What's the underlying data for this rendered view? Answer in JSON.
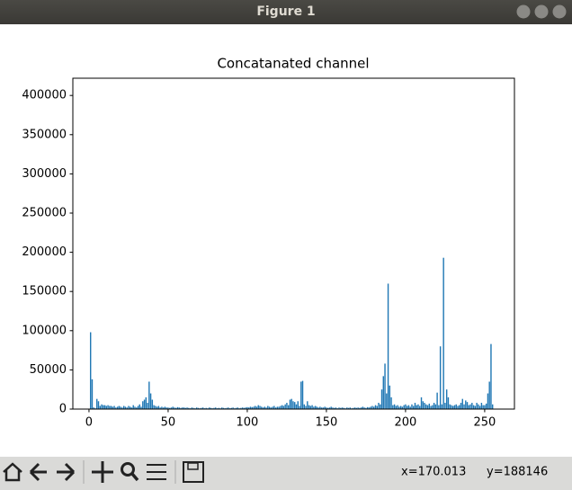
{
  "window": {
    "title": "Figure 1"
  },
  "chart_data": {
    "type": "bar",
    "title": "Concatanated channel",
    "color": "#1f77b4",
    "x": [
      0,
      1,
      2,
      3,
      4,
      5,
      6,
      7,
      8,
      9,
      10,
      11,
      12,
      13,
      14,
      15,
      16,
      17,
      18,
      19,
      20,
      21,
      22,
      23,
      24,
      25,
      26,
      27,
      28,
      29,
      30,
      31,
      32,
      33,
      34,
      35,
      36,
      37,
      38,
      39,
      40,
      41,
      42,
      43,
      44,
      45,
      46,
      47,
      48,
      49,
      50,
      51,
      52,
      53,
      54,
      55,
      56,
      57,
      58,
      59,
      60,
      61,
      62,
      63,
      64,
      65,
      66,
      67,
      68,
      69,
      70,
      71,
      72,
      73,
      74,
      75,
      76,
      77,
      78,
      79,
      80,
      81,
      82,
      83,
      84,
      85,
      86,
      87,
      88,
      89,
      90,
      91,
      92,
      93,
      94,
      95,
      96,
      97,
      98,
      99,
      100,
      101,
      102,
      103,
      104,
      105,
      106,
      107,
      108,
      109,
      110,
      111,
      112,
      113,
      114,
      115,
      116,
      117,
      118,
      119,
      120,
      121,
      122,
      123,
      124,
      125,
      126,
      127,
      128,
      129,
      130,
      131,
      132,
      133,
      134,
      135,
      136,
      137,
      138,
      139,
      140,
      141,
      142,
      143,
      144,
      145,
      146,
      147,
      148,
      149,
      150,
      151,
      152,
      153,
      154,
      155,
      156,
      157,
      158,
      159,
      160,
      161,
      162,
      163,
      164,
      165,
      166,
      167,
      168,
      169,
      170,
      171,
      172,
      173,
      174,
      175,
      176,
      177,
      178,
      179,
      180,
      181,
      182,
      183,
      184,
      185,
      186,
      187,
      188,
      189,
      190,
      191,
      192,
      193,
      194,
      195,
      196,
      197,
      198,
      199,
      200,
      201,
      202,
      203,
      204,
      205,
      206,
      207,
      208,
      209,
      210,
      211,
      212,
      213,
      214,
      215,
      216,
      217,
      218,
      219,
      220,
      221,
      222,
      223,
      224,
      225,
      226,
      227,
      228,
      229,
      230,
      231,
      232,
      233,
      234,
      235,
      236,
      237,
      238,
      239,
      240,
      241,
      242,
      243,
      244,
      245,
      246,
      247,
      248,
      249,
      250,
      251,
      252,
      253,
      254,
      255
    ],
    "values": [
      0,
      98000,
      38000,
      2000,
      1000,
      13000,
      10000,
      4000,
      6000,
      5000,
      5000,
      4000,
      5000,
      4000,
      4000,
      3000,
      4000,
      2000,
      3000,
      4000,
      3000,
      2000,
      4000,
      3000,
      2000,
      4000,
      3000,
      2000,
      5000,
      3000,
      2000,
      4000,
      6000,
      3000,
      10000,
      12000,
      15000,
      8000,
      35000,
      20000,
      12000,
      5000,
      4000,
      3000,
      4000,
      2000,
      3000,
      2000,
      3000,
      2000,
      2000,
      1500,
      2000,
      3000,
      2000,
      1500,
      2500,
      2000,
      1500,
      2000,
      2000,
      1500,
      2000,
      1500,
      1000,
      2000,
      1500,
      1000,
      2000,
      1500,
      1000,
      1500,
      2000,
      1000,
      1500,
      1000,
      2000,
      1500,
      1000,
      1500,
      2000,
      1000,
      1500,
      1000,
      2000,
      1500,
      1000,
      1500,
      2000,
      1000,
      1500,
      2000,
      1000,
      1500,
      2000,
      1000,
      1500,
      2000,
      1500,
      2000,
      2500,
      2000,
      3000,
      2500,
      3000,
      4000,
      3000,
      5000,
      4000,
      3000,
      2000,
      3000,
      2000,
      4000,
      3000,
      2000,
      3000,
      4000,
      2000,
      3000,
      3000,
      4000,
      5000,
      4000,
      6000,
      8000,
      5000,
      12000,
      13000,
      10000,
      9000,
      6000,
      10000,
      4000,
      35000,
      36000,
      6000,
      4000,
      10000,
      5000,
      4000,
      5000,
      3000,
      4000,
      3000,
      2000,
      3000,
      2000,
      2000,
      3000,
      2000,
      1500,
      2000,
      3000,
      2000,
      1500,
      2000,
      1000,
      2000,
      1500,
      2000,
      1500,
      1000,
      2000,
      1500,
      2000,
      1000,
      1500,
      2000,
      1500,
      2000,
      1500,
      2000,
      3000,
      2000,
      1500,
      2500,
      2000,
      3000,
      4000,
      3000,
      5000,
      4000,
      8000,
      6000,
      25000,
      42000,
      58000,
      20000,
      160000,
      30000,
      15000,
      5000,
      6000,
      4000,
      5000,
      3000,
      4000,
      3000,
      5000,
      6000,
      4000,
      5000,
      3000,
      6000,
      4000,
      8000,
      5000,
      6000,
      4000,
      15000,
      10000,
      8000,
      6000,
      5000,
      7000,
      4000,
      5000,
      8000,
      6000,
      21000,
      5000,
      80000,
      6000,
      193000,
      8000,
      25000,
      15000,
      6000,
      5000,
      4000,
      5000,
      6000,
      4000,
      5000,
      8000,
      13000,
      6000,
      11000,
      9000,
      5000,
      6000,
      8000,
      5000,
      4000,
      8000,
      6000,
      4000,
      8000,
      5000,
      5000,
      7000,
      20000,
      35000,
      83000,
      6000
    ],
    "xlim": [
      -10.2,
      268.8
    ],
    "xticks": [
      0,
      50,
      100,
      150,
      200,
      250
    ],
    "ylim": [
      0,
      422000
    ],
    "yticks": [
      0,
      50000,
      100000,
      150000,
      200000,
      250000,
      300000,
      350000,
      400000
    ]
  },
  "status": {
    "x": "x=170.013",
    "y": "y=188146"
  }
}
